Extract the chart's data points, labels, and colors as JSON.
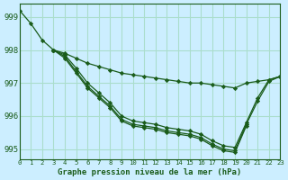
{
  "bg_color": "#cceeff",
  "grid_color": "#aaddcc",
  "line_color": "#1a5c1a",
  "marker_color": "#1a5c1a",
  "title": "Graphe pression niveau de la mer (hPa)",
  "xlim": [
    0,
    23
  ],
  "ylim": [
    994.7,
    999.4
  ],
  "yticks": [
    995,
    996,
    997,
    998,
    999
  ],
  "xticks": [
    0,
    1,
    2,
    3,
    4,
    5,
    6,
    7,
    8,
    9,
    10,
    11,
    12,
    13,
    14,
    15,
    16,
    17,
    18,
    19,
    20,
    21,
    22,
    23
  ],
  "series": [
    {
      "x": [
        0,
        1,
        2,
        3,
        4,
        5,
        6,
        7,
        8,
        9,
        10,
        11,
        12,
        13,
        14,
        15,
        16,
        17,
        18,
        19,
        20,
        21,
        22,
        23
      ],
      "y": [
        999.2,
        998.8,
        998.3,
        998.0,
        997.9,
        997.75,
        997.6,
        997.5,
        997.4,
        997.3,
        997.25,
        997.2,
        997.15,
        997.1,
        997.05,
        997.0,
        997.0,
        996.95,
        996.9,
        996.85,
        997.0,
        997.05,
        997.1,
        997.2
      ]
    },
    {
      "x": [
        3,
        4,
        5,
        6,
        7,
        8,
        9,
        10,
        11,
        12,
        13,
        14,
        15,
        16,
        17,
        18,
        19,
        20,
        21,
        22,
        23
      ],
      "y": [
        998.0,
        997.85,
        997.45,
        997.0,
        996.7,
        996.4,
        996.0,
        995.85,
        995.8,
        995.75,
        995.65,
        995.6,
        995.55,
        995.45,
        995.25,
        995.1,
        995.05,
        995.8,
        996.55,
        997.1,
        997.2
      ]
    },
    {
      "x": [
        3,
        4,
        5,
        6,
        7,
        8,
        9,
        10,
        11,
        12,
        13,
        14,
        15,
        16,
        17,
        18,
        19,
        20,
        21,
        22,
        23
      ],
      "y": [
        998.0,
        997.8,
        997.35,
        996.9,
        996.6,
        996.3,
        995.9,
        995.75,
        995.7,
        995.65,
        995.55,
        995.5,
        995.45,
        995.35,
        995.15,
        995.0,
        994.95,
        995.75,
        996.45,
        997.05,
        997.2
      ]
    },
    {
      "x": [
        3,
        4,
        5,
        6,
        7,
        8,
        9,
        10,
        11,
        12,
        13,
        14,
        15,
        16,
        17,
        18,
        19,
        20
      ],
      "y": [
        998.0,
        997.75,
        997.3,
        996.85,
        996.55,
        996.25,
        995.85,
        995.7,
        995.65,
        995.6,
        995.5,
        995.45,
        995.4,
        995.3,
        995.1,
        994.95,
        994.9,
        995.7
      ]
    }
  ]
}
